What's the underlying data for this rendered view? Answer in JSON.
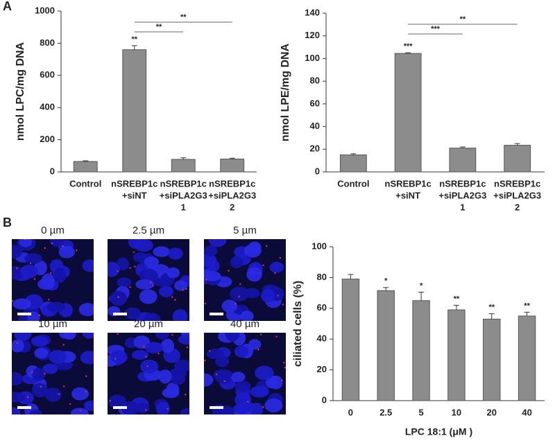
{
  "panels": [
    "A",
    "B"
  ],
  "images": [
    "0 µm",
    "2.5 µm",
    "5 µm",
    "10 µm",
    "20 µm",
    "40 µm"
  ],
  "chart_data": [
    {
      "type": "bar",
      "y_label": "nmol LPC/mg DNA",
      "color": "#8c8c8c",
      "categories": [
        [
          "Control"
        ],
        [
          "nSREBP1c",
          "+siNT"
        ],
        [
          "nSREBP1c",
          "+siPLA2G3",
          "1"
        ],
        [
          "nSREBP1c",
          "+siPLA2G3",
          "2"
        ]
      ],
      "values": [
        65,
        760,
        78,
        80
      ],
      "errors": [
        4,
        25,
        10,
        5
      ],
      "annotations": [
        null,
        "**",
        null,
        null
      ],
      "brackets": [
        {
          "from": 1,
          "to": 2,
          "text": "**"
        },
        {
          "from": 1,
          "to": 3,
          "text": "**"
        }
      ],
      "ylim": [
        0,
        1000
      ],
      "yticks": [
        0,
        200,
        400,
        600,
        800,
        1000
      ]
    },
    {
      "type": "bar",
      "y_label": "nmol LPE/mg DNA",
      "color": "#8c8c8c",
      "categories": [
        [
          "Control"
        ],
        [
          "nSREBP1c",
          "+siNT"
        ],
        [
          "nSREBP1c",
          "+siPLA2G3",
          "1"
        ],
        [
          "nSREBP1c",
          "+siPLA2G3",
          "2"
        ]
      ],
      "values": [
        15,
        104.5,
        21,
        23.5
      ],
      "errors": [
        1,
        0.6,
        1,
        1.5
      ],
      "annotations": [
        null,
        "***",
        null,
        null
      ],
      "brackets": [
        {
          "from": 1,
          "to": 2,
          "text": "***"
        },
        {
          "from": 1,
          "to": 3,
          "text": "**"
        }
      ],
      "ylim": [
        0,
        140
      ],
      "yticks": [
        0,
        20,
        40,
        60,
        80,
        100,
        120,
        140
      ]
    },
    {
      "type": "bar",
      "y_label": "ciliated cells (%)",
      "x_label": "LPC 18:1 (μM )",
      "color": "#8c8c8c",
      "categories": [
        [
          "0"
        ],
        [
          "2.5"
        ],
        [
          "5"
        ],
        [
          "10"
        ],
        [
          "20"
        ],
        [
          "40"
        ]
      ],
      "values": [
        79,
        71.5,
        65,
        59,
        53,
        55
      ],
      "errors": [
        3,
        2,
        5.5,
        3,
        3.5,
        2.5
      ],
      "annotations": [
        null,
        "*",
        "*",
        "**",
        "**",
        "**"
      ],
      "ylim": [
        0,
        100
      ],
      "yticks": [
        0,
        20,
        40,
        60,
        80,
        100
      ]
    }
  ]
}
